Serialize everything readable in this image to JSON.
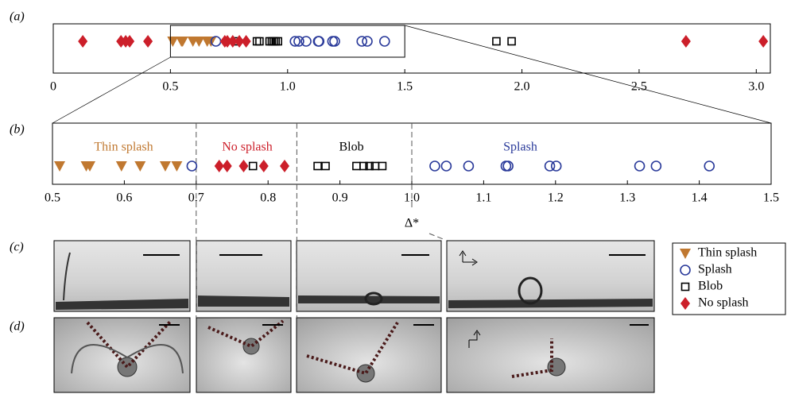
{
  "panel_labels": [
    "(a)",
    "(b)",
    "(c)",
    "(d)"
  ],
  "chart_data": [
    {
      "type": "scatter",
      "xlim": [
        0,
        3.06
      ],
      "xticks": [
        0,
        0.5,
        {
          "value": 1,
          "label": "1.0"
        },
        1.5,
        {
          "value": 2,
          "label": "2.0"
        },
        2.5,
        {
          "value": 3,
          "label": "3.0"
        }
      ],
      "series": [
        {
          "name": "Thin splash",
          "color": "#c07830",
          "marker": "triangle",
          "values": [
            0.51,
            0.547,
            0.552,
            0.596,
            0.622,
            0.657,
            0.673
          ]
        },
        {
          "name": "Splash",
          "color": "#2a3a9a",
          "marker": "circle",
          "values": [
            0.694,
            1.032,
            1.048,
            1.079,
            1.131,
            1.134,
            1.192,
            1.201,
            1.317,
            1.34,
            1.414
          ]
        },
        {
          "name": "Blob",
          "color": "#000000",
          "marker": "square",
          "values": [
            0.779,
            0.869,
            0.88,
            0.923,
            0.933,
            0.941,
            0.949,
            0.959,
            1.891,
            1.956
          ]
        },
        {
          "name": "No splash",
          "color": "#cc1f2a",
          "marker": "diamond",
          "values": [
            0.126,
            0.289,
            0.309,
            0.326,
            0.404,
            0.732,
            0.743,
            0.766,
            0.794,
            0.823,
            2.7,
            3.03
          ]
        }
      ]
    },
    {
      "type": "scatter",
      "xlim": [
        0.5,
        1.5
      ],
      "xlabel": "Δ*",
      "xticks": [
        0.5,
        0.6,
        0.7,
        0.8,
        0.9,
        {
          "value": 1,
          "label": "1.0"
        },
        1.1,
        1.2,
        1.3,
        1.4,
        1.5
      ],
      "thresholds": [
        0.7,
        0.84,
        1.0
      ],
      "annotations": [
        {
          "text": "Thin splash",
          "x": 0.599,
          "color": "#c07830"
        },
        {
          "text": "No splash",
          "x": 0.771,
          "color": "#cc1f2a"
        },
        {
          "text": "Blob",
          "x": 0.916,
          "color": "#000000"
        },
        {
          "text": "Splash",
          "x": 1.151,
          "color": "#2a3a9a"
        }
      ],
      "series": [
        {
          "color": "#c07830",
          "marker": "triangle",
          "values": [
            0.51,
            0.547,
            0.552,
            0.596,
            0.622,
            0.657,
            0.673
          ]
        },
        {
          "color": "#2a3a9a",
          "marker": "circle",
          "values": [
            0.694,
            1.032,
            1.048,
            1.079,
            1.131,
            1.134,
            1.192,
            1.201,
            1.317,
            1.34,
            1.414
          ]
        },
        {
          "color": "#000000",
          "marker": "square",
          "values": [
            0.779,
            0.869,
            0.88,
            0.923,
            0.933,
            0.941,
            0.949,
            0.959
          ]
        },
        {
          "color": "#cc1f2a",
          "marker": "diamond",
          "values": [
            0.732,
            0.743,
            0.766,
            0.794,
            0.823
          ]
        }
      ]
    }
  ]
}
